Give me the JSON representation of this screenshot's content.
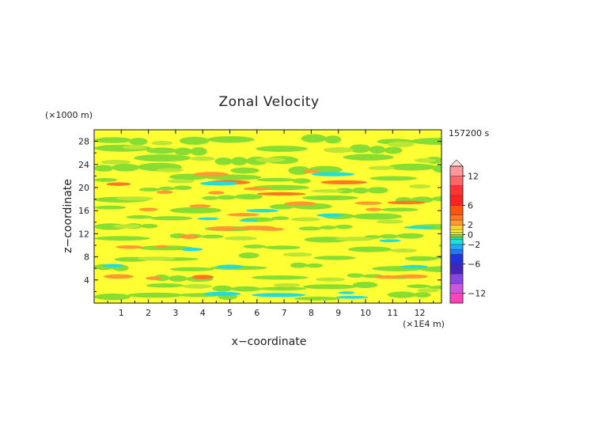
{
  "chart_data": {
    "type": "heatmap",
    "title": "Zonal Velocity",
    "xlabel": "x−coordinate",
    "ylabel": "z−coordinate",
    "x_unit": "(×1E4 m)",
    "y_unit": "(×1000 m)",
    "time_label": "157200 s",
    "xlim": [
      0,
      12.8
    ],
    "ylim": [
      0,
      30
    ],
    "x_ticks": [
      "1",
      "2",
      "3",
      "4",
      "5",
      "6",
      "7",
      "8",
      "9",
      "10",
      "11",
      "12"
    ],
    "y_ticks": [
      "4",
      "8",
      "12",
      "16",
      "20",
      "24",
      "28"
    ],
    "colorbar": {
      "tick_labels": [
        "12",
        "6",
        "2",
        "0",
        "−2",
        "−6",
        "−12"
      ],
      "tick_values": [
        12,
        6,
        2,
        0,
        -2,
        -6,
        -12
      ],
      "levels": [
        -14,
        -12,
        -10,
        -8,
        -6,
        -4,
        -3,
        -2,
        -1,
        -0.5,
        0,
        0.5,
        1,
        2,
        3,
        4,
        6,
        8,
        10,
        12,
        14
      ],
      "colors": [
        "#ff44bb",
        "#cc55dd",
        "#8844dd",
        "#4422bb",
        "#2233dd",
        "#2277ff",
        "#22aaff",
        "#22dddd",
        "#33ddaa",
        "#88dd33",
        "#ddee33",
        "#ffff33",
        "#ffcc33",
        "#ff9933",
        "#ff7722",
        "#ff5511",
        "#ff2222",
        "#ff3333",
        "#ff6666",
        "#ff9999"
      ],
      "extend_arrow": "top"
    },
    "features": {
      "strong_positive": [
        [
          4.95,
          20.9,
          0.8,
          0.4
        ],
        [
          0.9,
          20.6,
          0.45,
          0.3
        ],
        [
          6.9,
          18.9,
          0.9,
          0.3
        ],
        [
          9.2,
          20.9,
          0.85,
          0.35
        ],
        [
          11.5,
          17.4,
          0.7,
          0.3
        ],
        [
          4.0,
          4.5,
          0.4,
          0.4
        ]
      ],
      "positive": [
        [
          4.3,
          22.3,
          0.65,
          0.4
        ],
        [
          2.6,
          19.2,
          0.3,
          0.3
        ],
        [
          4.5,
          19.1,
          0.3,
          0.3
        ],
        [
          6.0,
          19.8,
          0.5,
          0.3
        ],
        [
          3.9,
          16.8,
          0.4,
          0.3
        ],
        [
          2.0,
          16.2,
          0.35,
          0.3
        ],
        [
          7.6,
          17.2,
          0.6,
          0.4
        ],
        [
          10.1,
          17.3,
          0.5,
          0.3
        ],
        [
          5.5,
          15.3,
          0.6,
          0.3
        ],
        [
          4.8,
          12.9,
          0.6,
          0.4
        ],
        [
          6.0,
          13.0,
          0.7,
          0.4
        ],
        [
          6.5,
          12.8,
          0.5,
          0.3
        ],
        [
          3.5,
          11.5,
          0.35,
          0.4
        ],
        [
          1.3,
          9.7,
          0.5,
          0.3
        ],
        [
          2.5,
          9.8,
          0.25,
          0.25
        ],
        [
          2.2,
          4.3,
          0.3,
          0.3
        ],
        [
          0.9,
          4.6,
          0.55,
          0.4
        ],
        [
          10.8,
          4.5,
          0.5,
          0.3
        ],
        [
          11.7,
          4.6,
          0.6,
          0.35
        ],
        [
          10.3,
          16.2,
          0.3,
          0.3
        ],
        [
          8.0,
          22.8,
          0.3,
          0.3
        ]
      ],
      "negative": [
        [
          4.6,
          20.7,
          0.7,
          0.35
        ],
        [
          8.8,
          22.3,
          0.8,
          0.35
        ],
        [
          6.2,
          16.0,
          0.6,
          0.3
        ],
        [
          4.2,
          14.6,
          0.4,
          0.25
        ],
        [
          5.7,
          14.3,
          0.35,
          0.25
        ],
        [
          3.6,
          9.3,
          0.4,
          0.3
        ],
        [
          0.7,
          6.5,
          0.4,
          0.3
        ],
        [
          5.0,
          6.3,
          0.5,
          0.35
        ],
        [
          4.7,
          1.6,
          0.7,
          0.35
        ],
        [
          6.8,
          1.4,
          1.0,
          0.35
        ],
        [
          9.5,
          1.0,
          0.6,
          0.25
        ],
        [
          11.8,
          6.3,
          0.5,
          0.3
        ],
        [
          10.9,
          10.8,
          0.4,
          0.25
        ],
        [
          12.0,
          13.1,
          0.6,
          0.25
        ],
        [
          8.7,
          15.2,
          0.5,
          0.3
        ],
        [
          9.3,
          1.8,
          0.3,
          0.25
        ]
      ],
      "weak_negative": [
        [
          1.5,
          27.0,
          0.45,
          0.4
        ],
        [
          2.5,
          27.7,
          0.4,
          0.4
        ],
        [
          0.8,
          24.4,
          0.55,
          0.4
        ],
        [
          4.0,
          25.0,
          0.45,
          0.4
        ],
        [
          6.5,
          24.8,
          0.55,
          0.4
        ],
        [
          9.0,
          26.5,
          0.55,
          0.5
        ],
        [
          11.3,
          27.5,
          0.5,
          0.5
        ],
        [
          12.2,
          24.7,
          0.4,
          0.4
        ],
        [
          2.8,
          23.0,
          0.5,
          0.35
        ],
        [
          10.6,
          23.4,
          0.5,
          0.35
        ],
        [
          1.5,
          18.1,
          0.7,
          0.35
        ],
        [
          8.6,
          19.4,
          0.6,
          0.3
        ],
        [
          5.4,
          11.2,
          0.6,
          0.35
        ],
        [
          9.6,
          11.1,
          0.7,
          0.4
        ],
        [
          2.3,
          7.7,
          0.7,
          0.35
        ],
        [
          7.5,
          8.4,
          0.55,
          0.35
        ],
        [
          11.4,
          9.1,
          0.5,
          0.35
        ],
        [
          3.8,
          2.9,
          0.55,
          0.4
        ],
        [
          8.7,
          4.1,
          0.55,
          0.35
        ],
        [
          12.3,
          2.2,
          0.4,
          0.35
        ],
        [
          7.1,
          3.1,
          0.5,
          0.35
        ],
        [
          1.2,
          13.3,
          0.5,
          0.35
        ],
        [
          7.8,
          14.5,
          0.55,
          0.35
        ],
        [
          10.9,
          14.1,
          0.5,
          0.35
        ],
        [
          3.2,
          21.1,
          0.5,
          0.35
        ],
        [
          12.0,
          20.2,
          0.4,
          0.35
        ]
      ]
    }
  }
}
